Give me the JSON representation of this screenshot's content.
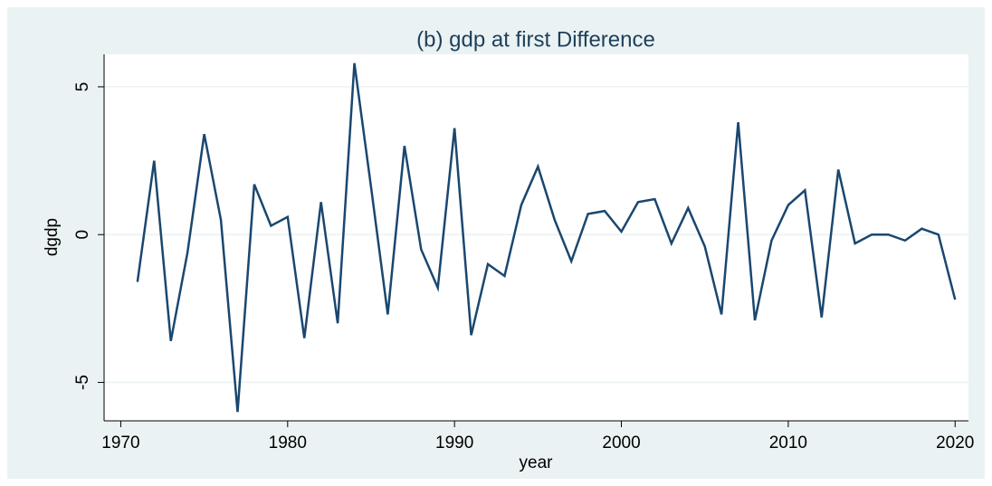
{
  "chart_data": {
    "type": "line",
    "title": "(b) gdp at first Difference",
    "x_label": "year",
    "y_label": "dgdp",
    "x": [
      1971,
      1972,
      1973,
      1974,
      1975,
      1976,
      1977,
      1978,
      1979,
      1980,
      1981,
      1982,
      1983,
      1984,
      1985,
      1986,
      1987,
      1988,
      1989,
      1990,
      1991,
      1992,
      1993,
      1994,
      1995,
      1996,
      1997,
      1998,
      1999,
      2000,
      2001,
      2002,
      2003,
      2004,
      2005,
      2006,
      2007,
      2008,
      2009,
      2010,
      2011,
      2012,
      2013,
      2014,
      2015,
      2016,
      2017,
      2018,
      2019,
      2020
    ],
    "series": [
      {
        "name": "dgdp",
        "color": "#1a476f",
        "values": [
          -1.6,
          2.5,
          -3.6,
          -0.6,
          3.4,
          0.5,
          -6.0,
          1.7,
          0.3,
          0.6,
          -3.5,
          1.1,
          -3.0,
          5.8,
          1.6,
          -2.7,
          3.0,
          -0.5,
          -1.8,
          3.6,
          -3.4,
          -1.0,
          -1.4,
          1.0,
          2.3,
          0.5,
          -0.9,
          0.7,
          0.8,
          0.1,
          1.1,
          1.2,
          -0.3,
          0.9,
          -0.4,
          -2.7,
          3.8,
          -2.9,
          -0.2,
          1.0,
          1.5,
          -2.8,
          2.2,
          -0.3,
          0,
          0,
          -0.2,
          0.2,
          0,
          -2.2
        ]
      }
    ],
    "xlim": [
      1969,
      2020.8
    ],
    "ylim": [
      -6.3,
      6.1
    ],
    "xticks": [
      1970,
      1980,
      1990,
      2000,
      2010,
      2020
    ],
    "yticks": [
      -5,
      0,
      5
    ],
    "grid": true
  }
}
